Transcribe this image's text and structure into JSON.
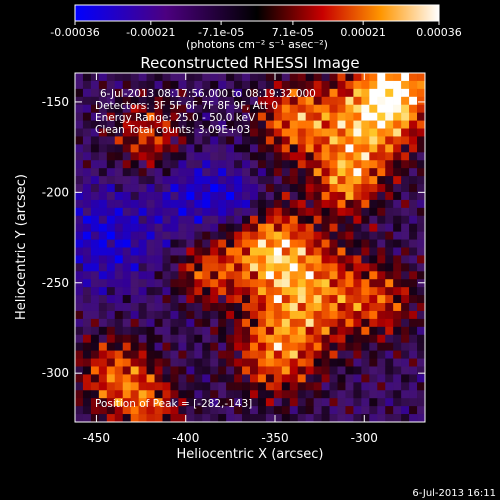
{
  "chart_data": {
    "type": "heatmap",
    "title": "Reconstructed RHESSI Image",
    "xlabel": "Heliocentric X (arcsec)",
    "ylabel": "Heliocentric Y (arcsec)",
    "xlim": [
      -462,
      -266
    ],
    "ylim": [
      -327,
      -134
    ],
    "x_ticks": [
      -450,
      -400,
      -350,
      -300
    ],
    "y_ticks": [
      -150,
      -200,
      -250,
      -300
    ],
    "colorbar": {
      "ticks": [
        -0.00036,
        -0.00021,
        -7.1e-05,
        7.1e-05,
        0.00021,
        0.00036
      ],
      "tick_labels": [
        "-0.00036",
        "-0.00021",
        "-7.1e-05",
        "7.1e-05",
        "0.00021",
        "0.00036"
      ],
      "unit_label": "(photons cm⁻² s⁻¹ asec⁻²)",
      "range": [
        -0.00036,
        0.00036
      ]
    },
    "annotations": [
      "6-Jul-2013 08:17:56.000 to 08:19:32.000",
      "Detectors: 3F 5F 6F 7F 8F 9F, Att 0",
      "Energy Range: 25.0 - 50.0 keV",
      "Clean    Total counts: 3.09E+03"
    ],
    "peak_label": "Position of Peak = [-282,-143]",
    "peak": [
      -282,
      -143
    ],
    "grid": false,
    "legend": "colorbar-top"
  },
  "footer": {
    "date": "6-Jul-2013 16:11"
  },
  "colors": {
    "background": "#000000",
    "foreground": "#ffffff"
  }
}
